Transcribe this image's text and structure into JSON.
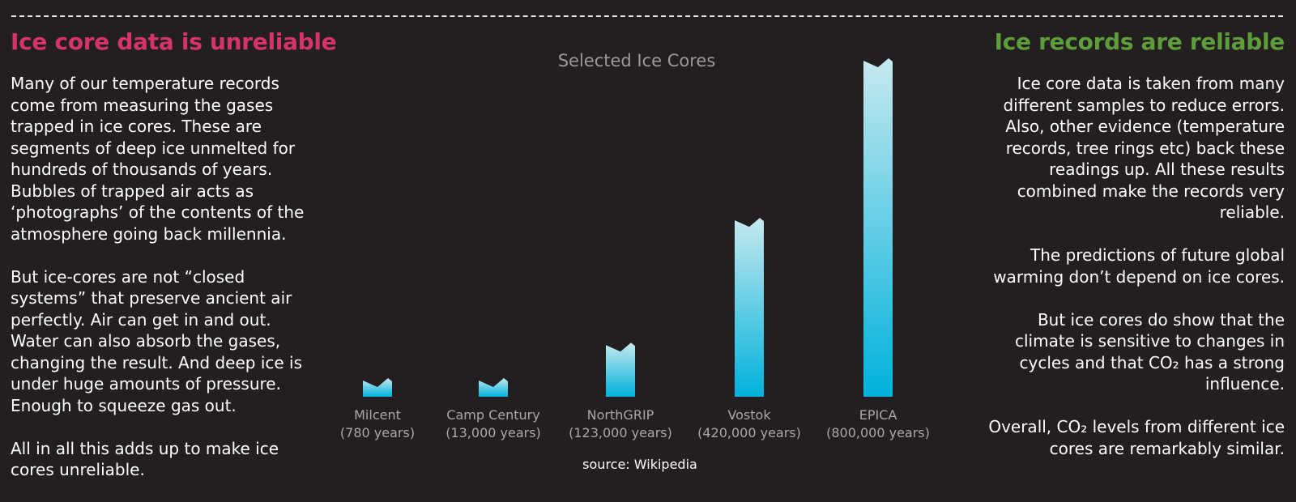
{
  "left": {
    "heading": "Ice core data is unreliable",
    "paragraphs": [
      "Many of our temperature records come from measuring the gases trapped in ice cores. These are segments of deep ice unmelted for hundreds of thousands of years. Bubbles of trapped air acts as ‘photographs’ of the contents of the atmosphere going back millennia.",
      "But ice-cores are not “closed systems” that preserve ancient air perfectly. Air can get in and out. Water can also absorb the gases, changing the result. And deep ice is under huge amounts of pressure. Enough to squeeze gas out.",
      "All in all this adds up to make ice cores unreliable."
    ]
  },
  "right": {
    "heading": "Ice records are reliable",
    "paragraphs": [
      "Ice core data is taken from many different samples to reduce errors. Also, other evidence (temperature records, tree rings etc) back these readings up.  All these results combined make the records very reliable.",
      "The predictions of future global warming don’t depend on ice cores.",
      "But ice cores do show that the climate is sensitive to changes in cycles and that CO₂ has a strong influence.",
      "Overall, CO₂ levels from different ice cores are remarkably similar."
    ]
  },
  "chart_data": {
    "type": "bar",
    "title": "Selected Ice Cores",
    "categories": [
      "Milcent",
      "Camp Century",
      "NorthGRIP",
      "Vostok",
      "EPICA"
    ],
    "category_sublabels": [
      "(780 years)",
      "(13,000 years)",
      "(123,000 years)",
      "(420,000 years)",
      "(800,000 years)"
    ],
    "values": [
      780,
      13000,
      123000,
      420000,
      800000
    ],
    "xlabel": "",
    "ylabel": "",
    "source": "source: Wikipedia",
    "colors": {
      "bar_top": "#c6e9ef",
      "bar_bottom": "#00b2dc",
      "title": "#9a9a9a",
      "labels": "#a8a8a8"
    }
  }
}
